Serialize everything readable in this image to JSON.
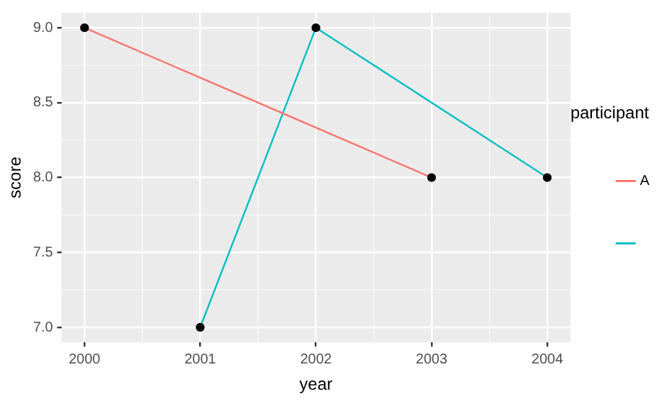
{
  "chart_data": {
    "type": "line",
    "xlabel": "year",
    "ylabel": "score",
    "legend_title": "participant",
    "xlim": [
      1999.8,
      2004.2
    ],
    "xticks": [
      2000,
      2001,
      2002,
      2003,
      2004
    ],
    "ylim": [
      6.9,
      9.1
    ],
    "yticks": [
      {
        "value": 7,
        "label": "7.0"
      },
      {
        "value": 7.5,
        "label": "7.5"
      },
      {
        "value": 8,
        "label": "8.0"
      },
      {
        "value": 8.5,
        "label": "8.5"
      },
      {
        "value": 9,
        "label": "9.0"
      }
    ],
    "series": [
      {
        "name": "A",
        "color": "#f8766d",
        "x": [
          2000,
          2003
        ],
        "values": [
          9,
          8
        ]
      },
      {
        "color": "#00bfc4",
        "x": [
          2001,
          2002,
          2004
        ],
        "values": [
          7,
          9,
          8
        ]
      }
    ],
    "grid": true,
    "legend": "right",
    "marker": "circle",
    "line_style": "solid"
  }
}
